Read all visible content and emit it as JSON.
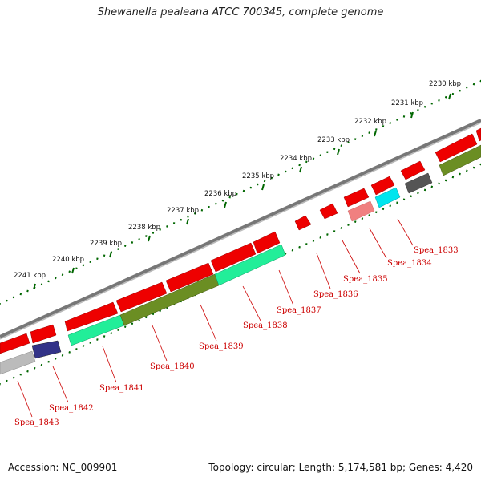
{
  "header": {
    "title": "Shewanella pealeana ATCC 700345, complete genome"
  },
  "footer": {
    "accession": "Accession: NC_009901",
    "topology": "Topology: circular; Length: 5,174,581 bp; Genes: 4,420"
  },
  "ticks": [
    {
      "label": "2230 kbp"
    },
    {
      "label": "2231 kbp"
    },
    {
      "label": "2232 kbp"
    },
    {
      "label": "2233 kbp"
    },
    {
      "label": "2234 kbp"
    },
    {
      "label": "2235 kbp"
    },
    {
      "label": "2236 kbp"
    },
    {
      "label": "2237 kbp"
    },
    {
      "label": "2238 kbp"
    },
    {
      "label": "2239 kbp"
    },
    {
      "label": "2240 kbp"
    },
    {
      "label": "2241 kbp"
    }
  ],
  "gene_labels": [
    {
      "name": "Spea_1833"
    },
    {
      "name": "Spea_1834"
    },
    {
      "name": "Spea_1835"
    },
    {
      "name": "Spea_1836"
    },
    {
      "name": "Spea_1837"
    },
    {
      "name": "Spea_1838"
    },
    {
      "name": "Spea_1839"
    },
    {
      "name": "Spea_1840"
    },
    {
      "name": "Spea_1841"
    },
    {
      "name": "Spea_1842"
    },
    {
      "name": "Spea_1843"
    }
  ],
  "colors": {
    "cds_forward": "#ee0000",
    "cds_light": "#f08080",
    "backbone": "#808080",
    "tick": "#006600",
    "label": "#cc0000",
    "green_feature": "#22ee99",
    "olive_feature": "#6b8e23",
    "navy_feature": "#333388",
    "gray_feature": "#bbbbbb",
    "dark_feature": "#555555",
    "cyan_feature": "#00e5ee"
  }
}
